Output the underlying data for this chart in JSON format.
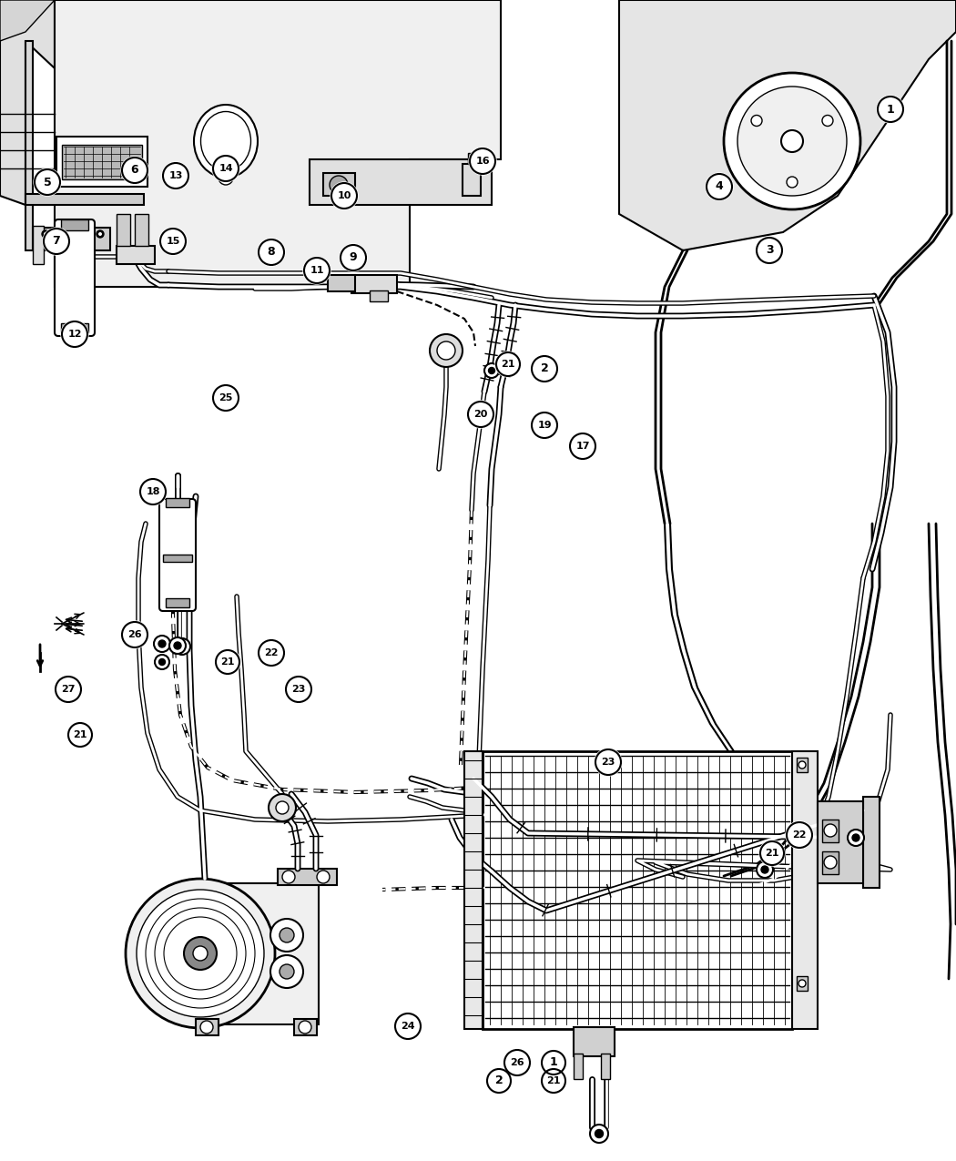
{
  "bg": "#ffffff",
  "lc": "#000000",
  "fw": 10.5,
  "fh": 12.75,
  "dpi": 100,
  "circle_labels": [
    [
      978,
      1155,
      "1",
      14
    ],
    [
      598,
      870,
      "2",
      14
    ],
    [
      845,
      1000,
      "3",
      14
    ],
    [
      790,
      1070,
      "4",
      14
    ],
    [
      52,
      1075,
      "5",
      14
    ],
    [
      148,
      1088,
      "6",
      14
    ],
    [
      62,
      1010,
      "7",
      14
    ],
    [
      298,
      998,
      "8",
      14
    ],
    [
      388,
      992,
      "9",
      14
    ],
    [
      378,
      1060,
      "10",
      14
    ],
    [
      348,
      978,
      "11",
      14
    ],
    [
      82,
      908,
      "12",
      14
    ],
    [
      193,
      1082,
      "13",
      14
    ],
    [
      248,
      1090,
      "14",
      14
    ],
    [
      190,
      1010,
      "15",
      14
    ],
    [
      530,
      1098,
      "16",
      14
    ],
    [
      640,
      785,
      "17",
      14
    ],
    [
      168,
      735,
      "18",
      14
    ],
    [
      598,
      808,
      "19",
      14
    ],
    [
      528,
      820,
      "20",
      14
    ],
    [
      558,
      875,
      "21",
      13
    ],
    [
      88,
      468,
      "21",
      13
    ],
    [
      250,
      548,
      "21",
      13
    ],
    [
      848,
      338,
      "21",
      13
    ],
    [
      608,
      88,
      "21",
      13
    ],
    [
      298,
      558,
      "22",
      14
    ],
    [
      878,
      358,
      "22",
      14
    ],
    [
      328,
      518,
      "23",
      14
    ],
    [
      668,
      438,
      "23",
      14
    ],
    [
      448,
      148,
      "24",
      14
    ],
    [
      248,
      838,
      "25",
      14
    ],
    [
      148,
      578,
      "26",
      14
    ],
    [
      568,
      108,
      "26",
      14
    ],
    [
      75,
      518,
      "27",
      14
    ],
    [
      608,
      108,
      "1",
      13
    ],
    [
      548,
      88,
      "2",
      13
    ]
  ]
}
